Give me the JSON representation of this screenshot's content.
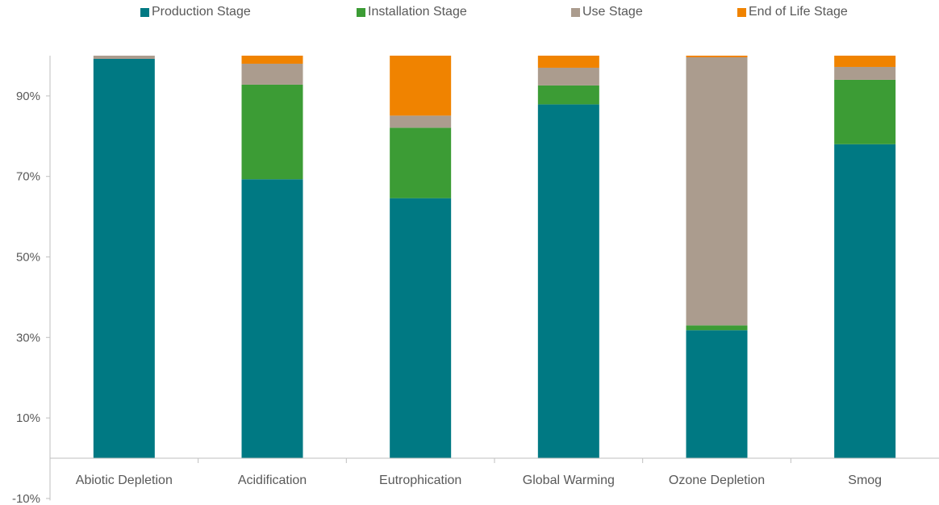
{
  "chart_data": {
    "type": "bar",
    "stacked": true,
    "categories": [
      "Abiotic Depletion",
      "Acidification",
      "Eutrophication",
      "Global Warming",
      "Ozone Depletion",
      "Smog"
    ],
    "series": [
      {
        "name": "Production Stage",
        "color": "#007983",
        "values": [
          99.2,
          69.3,
          64.6,
          87.9,
          31.8,
          78.0
        ]
      },
      {
        "name": "Installation Stage",
        "color": "#3C9C35",
        "values": [
          0.0,
          23.5,
          17.5,
          4.7,
          1.2,
          16.0
        ]
      },
      {
        "name": "Use Stage",
        "color": "#AB9C8E",
        "values": [
          0.8,
          5.2,
          3.0,
          4.4,
          66.6,
          3.2
        ]
      },
      {
        "name": "End of Life Stage",
        "color": "#F08300",
        "values": [
          0.0,
          2.0,
          14.9,
          3.0,
          0.4,
          2.8
        ]
      }
    ],
    "y_ticks": [
      "90%",
      "70%",
      "50%",
      "30%",
      "10%",
      "-10%"
    ],
    "y_tick_values": [
      90,
      70,
      50,
      30,
      10,
      -10
    ],
    "ylim": [
      -10,
      100
    ],
    "grid": false,
    "legend_position": "top"
  }
}
